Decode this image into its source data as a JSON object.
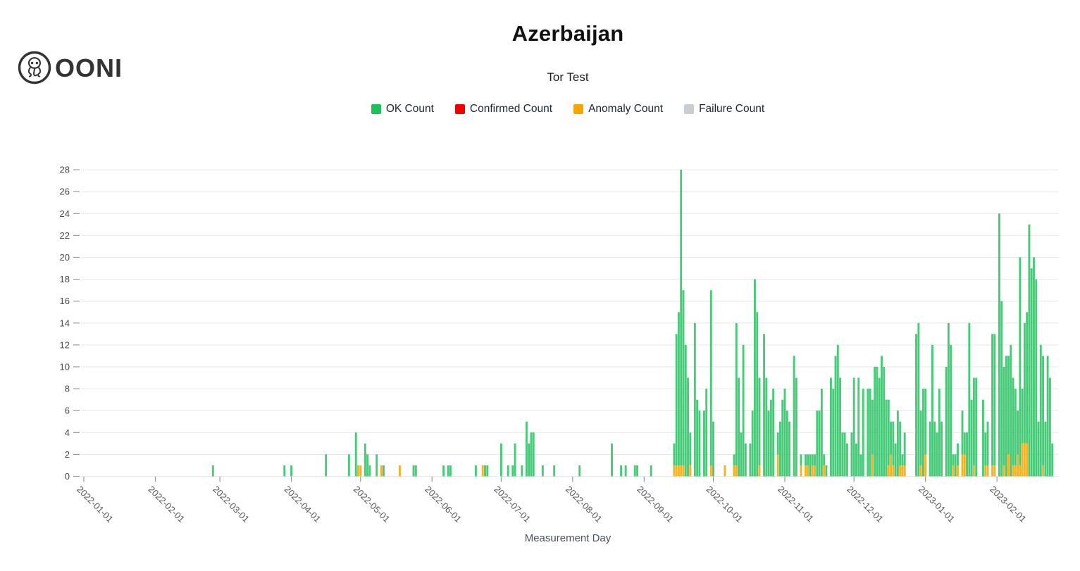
{
  "brand": {
    "logo_text": "OONI"
  },
  "header": {
    "title": "Azerbaijan",
    "subtitle": "Tor Test"
  },
  "legend": [
    {
      "label": "OK Count",
      "color": "#1ec05a"
    },
    {
      "label": "Confirmed Count",
      "color": "#f00000"
    },
    {
      "label": "Anomaly Count",
      "color": "#f5a700"
    },
    {
      "label": "Failure Count",
      "color": "#c9ced3"
    }
  ],
  "chart_data": {
    "type": "bar",
    "stacked": true,
    "title": "Azerbaijan",
    "subtitle": "Tor Test",
    "xlabel": "Measurement Day",
    "ylabel": "",
    "grid": true,
    "legend_position": "top",
    "y_axis": {
      "min": 0,
      "max": 28,
      "tick_step": 2
    },
    "x_axis": {
      "start": "2022-01-01",
      "end": "2023-02-28",
      "tick_rotation_deg": 45,
      "tick_labels": [
        "2022-01-01",
        "2022-02-01",
        "2022-03-01",
        "2022-04-01",
        "2022-05-01",
        "2022-06-01",
        "2022-07-01",
        "2022-08-01",
        "2022-09-01",
        "2022-10-01",
        "2022-11-01",
        "2022-12-01",
        "2023-01-01",
        "2023-02-01"
      ]
    },
    "series_colors": {
      "ok": "#1ec05a",
      "confirmed": "#f00000",
      "anomaly": "#f5a700",
      "failure": "#c9ced3"
    },
    "note": "confirmed_count and failure_count are 0 for every measurement day shown",
    "columns": [
      "date",
      "ok_count",
      "anomaly_count"
    ],
    "bars": [
      [
        "2022-02-26",
        1,
        0
      ],
      [
        "2022-03-29",
        1,
        0
      ],
      [
        "2022-04-01",
        1,
        0
      ],
      [
        "2022-04-16",
        2,
        0
      ],
      [
        "2022-04-26",
        2,
        0
      ],
      [
        "2022-04-29",
        4,
        0
      ],
      [
        "2022-04-30",
        0,
        1
      ],
      [
        "2022-05-01",
        0,
        1
      ],
      [
        "2022-05-03",
        3,
        0
      ],
      [
        "2022-05-04",
        2,
        0
      ],
      [
        "2022-05-05",
        1,
        0
      ],
      [
        "2022-05-08",
        2,
        0
      ],
      [
        "2022-05-10",
        0,
        1
      ],
      [
        "2022-05-11",
        1,
        0
      ],
      [
        "2022-05-18",
        0,
        1
      ],
      [
        "2022-05-24",
        1,
        0
      ],
      [
        "2022-05-25",
        1,
        0
      ],
      [
        "2022-06-06",
        1,
        0
      ],
      [
        "2022-06-08",
        1,
        0
      ],
      [
        "2022-06-09",
        1,
        0
      ],
      [
        "2022-06-20",
        1,
        0
      ],
      [
        "2022-06-23",
        0,
        1
      ],
      [
        "2022-06-24",
        1,
        0
      ],
      [
        "2022-06-25",
        1,
        0
      ],
      [
        "2022-07-01",
        3,
        0
      ],
      [
        "2022-07-04",
        1,
        0
      ],
      [
        "2022-07-06",
        1,
        0
      ],
      [
        "2022-07-07",
        3,
        0
      ],
      [
        "2022-07-10",
        1,
        0
      ],
      [
        "2022-07-12",
        5,
        0
      ],
      [
        "2022-07-13",
        3,
        0
      ],
      [
        "2022-07-14",
        4,
        0
      ],
      [
        "2022-07-15",
        4,
        0
      ],
      [
        "2022-07-19",
        1,
        0
      ],
      [
        "2022-07-24",
        1,
        0
      ],
      [
        "2022-08-04",
        1,
        0
      ],
      [
        "2022-08-18",
        3,
        0
      ],
      [
        "2022-08-22",
        1,
        0
      ],
      [
        "2022-08-24",
        1,
        0
      ],
      [
        "2022-08-28",
        1,
        0
      ],
      [
        "2022-08-29",
        1,
        0
      ],
      [
        "2022-09-04",
        1,
        0
      ],
      [
        "2022-09-14",
        2,
        1
      ],
      [
        "2022-09-15",
        12,
        1
      ],
      [
        "2022-09-16",
        14,
        1
      ],
      [
        "2022-09-17",
        27,
        1
      ],
      [
        "2022-09-18",
        16,
        1
      ],
      [
        "2022-09-19",
        12,
        0
      ],
      [
        "2022-09-20",
        9,
        0
      ],
      [
        "2022-09-21",
        3,
        1
      ],
      [
        "2022-09-23",
        14,
        0
      ],
      [
        "2022-09-24",
        7,
        0
      ],
      [
        "2022-09-25",
        6,
        0
      ],
      [
        "2022-09-27",
        6,
        0
      ],
      [
        "2022-09-28",
        8,
        0
      ],
      [
        "2022-09-30",
        16,
        1
      ],
      [
        "2022-10-01",
        5,
        0
      ],
      [
        "2022-10-06",
        0,
        1
      ],
      [
        "2022-10-10",
        1,
        1
      ],
      [
        "2022-10-11",
        13,
        1
      ],
      [
        "2022-10-12",
        9,
        0
      ],
      [
        "2022-10-13",
        4,
        0
      ],
      [
        "2022-10-14",
        12,
        0
      ],
      [
        "2022-10-15",
        3,
        0
      ],
      [
        "2022-10-17",
        3,
        0
      ],
      [
        "2022-10-18",
        6,
        0
      ],
      [
        "2022-10-19",
        18,
        0
      ],
      [
        "2022-10-20",
        15,
        0
      ],
      [
        "2022-10-21",
        8,
        1
      ],
      [
        "2022-10-23",
        13,
        0
      ],
      [
        "2022-10-24",
        9,
        0
      ],
      [
        "2022-10-25",
        6,
        0
      ],
      [
        "2022-10-26",
        7,
        0
      ],
      [
        "2022-10-27",
        8,
        0
      ],
      [
        "2022-10-29",
        2,
        2
      ],
      [
        "2022-10-30",
        5,
        0
      ],
      [
        "2022-10-31",
        7,
        0
      ],
      [
        "2022-11-01",
        8,
        0
      ],
      [
        "2022-11-02",
        6,
        0
      ],
      [
        "2022-11-03",
        5,
        0
      ],
      [
        "2022-11-05",
        11,
        0
      ],
      [
        "2022-11-06",
        9,
        0
      ],
      [
        "2022-11-08",
        1,
        1
      ],
      [
        "2022-11-10",
        1,
        1
      ],
      [
        "2022-11-11",
        1,
        1
      ],
      [
        "2022-11-12",
        2,
        0
      ],
      [
        "2022-11-13",
        1,
        1
      ],
      [
        "2022-11-14",
        1,
        1
      ],
      [
        "2022-11-15",
        6,
        0
      ],
      [
        "2022-11-16",
        6,
        0
      ],
      [
        "2022-11-17",
        8,
        0
      ],
      [
        "2022-11-18",
        1,
        1
      ],
      [
        "2022-11-19",
        1,
        0
      ],
      [
        "2022-11-21",
        9,
        0
      ],
      [
        "2022-11-22",
        8,
        0
      ],
      [
        "2022-11-23",
        11,
        0
      ],
      [
        "2022-11-24",
        12,
        0
      ],
      [
        "2022-11-25",
        9,
        0
      ],
      [
        "2022-11-26",
        4,
        0
      ],
      [
        "2022-11-27",
        4,
        0
      ],
      [
        "2022-11-28",
        3,
        0
      ],
      [
        "2022-11-30",
        4,
        0
      ],
      [
        "2022-12-01",
        9,
        0
      ],
      [
        "2022-12-02",
        3,
        0
      ],
      [
        "2022-12-03",
        9,
        0
      ],
      [
        "2022-12-04",
        2,
        0
      ],
      [
        "2022-12-05",
        8,
        0
      ],
      [
        "2022-12-07",
        8,
        0
      ],
      [
        "2022-12-08",
        8,
        0
      ],
      [
        "2022-12-09",
        5,
        2
      ],
      [
        "2022-12-10",
        10,
        0
      ],
      [
        "2022-12-11",
        10,
        0
      ],
      [
        "2022-12-12",
        9,
        0
      ],
      [
        "2022-12-13",
        11,
        0
      ],
      [
        "2022-12-14",
        10,
        0
      ],
      [
        "2022-12-15",
        7,
        0
      ],
      [
        "2022-12-16",
        6,
        1
      ],
      [
        "2022-12-17",
        3,
        2
      ],
      [
        "2022-12-18",
        4,
        1
      ],
      [
        "2022-12-19",
        3,
        0
      ],
      [
        "2022-12-20",
        6,
        0
      ],
      [
        "2022-12-21",
        4,
        1
      ],
      [
        "2022-12-22",
        1,
        1
      ],
      [
        "2022-12-23",
        3,
        1
      ],
      [
        "2022-12-28",
        13,
        0
      ],
      [
        "2022-12-29",
        14,
        0
      ],
      [
        "2022-12-30",
        5,
        1
      ],
      [
        "2022-12-31",
        8,
        0
      ],
      [
        "2023-01-01",
        6,
        2
      ],
      [
        "2023-01-03",
        5,
        0
      ],
      [
        "2023-01-04",
        12,
        0
      ],
      [
        "2023-01-05",
        5,
        0
      ],
      [
        "2023-01-06",
        4,
        0
      ],
      [
        "2023-01-07",
        8,
        0
      ],
      [
        "2023-01-08",
        5,
        0
      ],
      [
        "2023-01-10",
        10,
        0
      ],
      [
        "2023-01-11",
        14,
        0
      ],
      [
        "2023-01-12",
        12,
        0
      ],
      [
        "2023-01-13",
        1,
        1
      ],
      [
        "2023-01-14",
        2,
        0
      ],
      [
        "2023-01-15",
        2,
        1
      ],
      [
        "2023-01-17",
        4,
        2
      ],
      [
        "2023-01-18",
        2,
        2
      ],
      [
        "2023-01-19",
        4,
        0
      ],
      [
        "2023-01-20",
        14,
        0
      ],
      [
        "2023-01-21",
        7,
        0
      ],
      [
        "2023-01-22",
        8,
        1
      ],
      [
        "2023-01-23",
        9,
        0
      ],
      [
        "2023-01-26",
        7,
        0
      ],
      [
        "2023-01-27",
        3,
        1
      ],
      [
        "2023-01-28",
        4,
        1
      ],
      [
        "2023-01-30",
        12,
        1
      ],
      [
        "2023-01-31",
        12,
        1
      ],
      [
        "2023-02-02",
        24,
        0
      ],
      [
        "2023-02-03",
        16,
        0
      ],
      [
        "2023-02-04",
        9,
        1
      ],
      [
        "2023-02-05",
        11,
        0
      ],
      [
        "2023-02-06",
        9,
        2
      ],
      [
        "2023-02-07",
        12,
        0
      ],
      [
        "2023-02-08",
        8,
        1
      ],
      [
        "2023-02-09",
        7,
        1
      ],
      [
        "2023-02-10",
        4,
        2
      ],
      [
        "2023-02-11",
        19,
        1
      ],
      [
        "2023-02-12",
        5,
        3
      ],
      [
        "2023-02-13",
        11,
        3
      ],
      [
        "2023-02-14",
        12,
        3
      ],
      [
        "2023-02-15",
        23,
        0
      ],
      [
        "2023-02-16",
        19,
        0
      ],
      [
        "2023-02-17",
        20,
        0
      ],
      [
        "2023-02-18",
        18,
        0
      ],
      [
        "2023-02-19",
        5,
        0
      ],
      [
        "2023-02-20",
        12,
        0
      ],
      [
        "2023-02-21",
        10,
        1
      ],
      [
        "2023-02-22",
        5,
        0
      ],
      [
        "2023-02-23",
        11,
        0
      ],
      [
        "2023-02-24",
        9,
        0
      ],
      [
        "2023-02-25",
        3,
        0
      ]
    ]
  }
}
